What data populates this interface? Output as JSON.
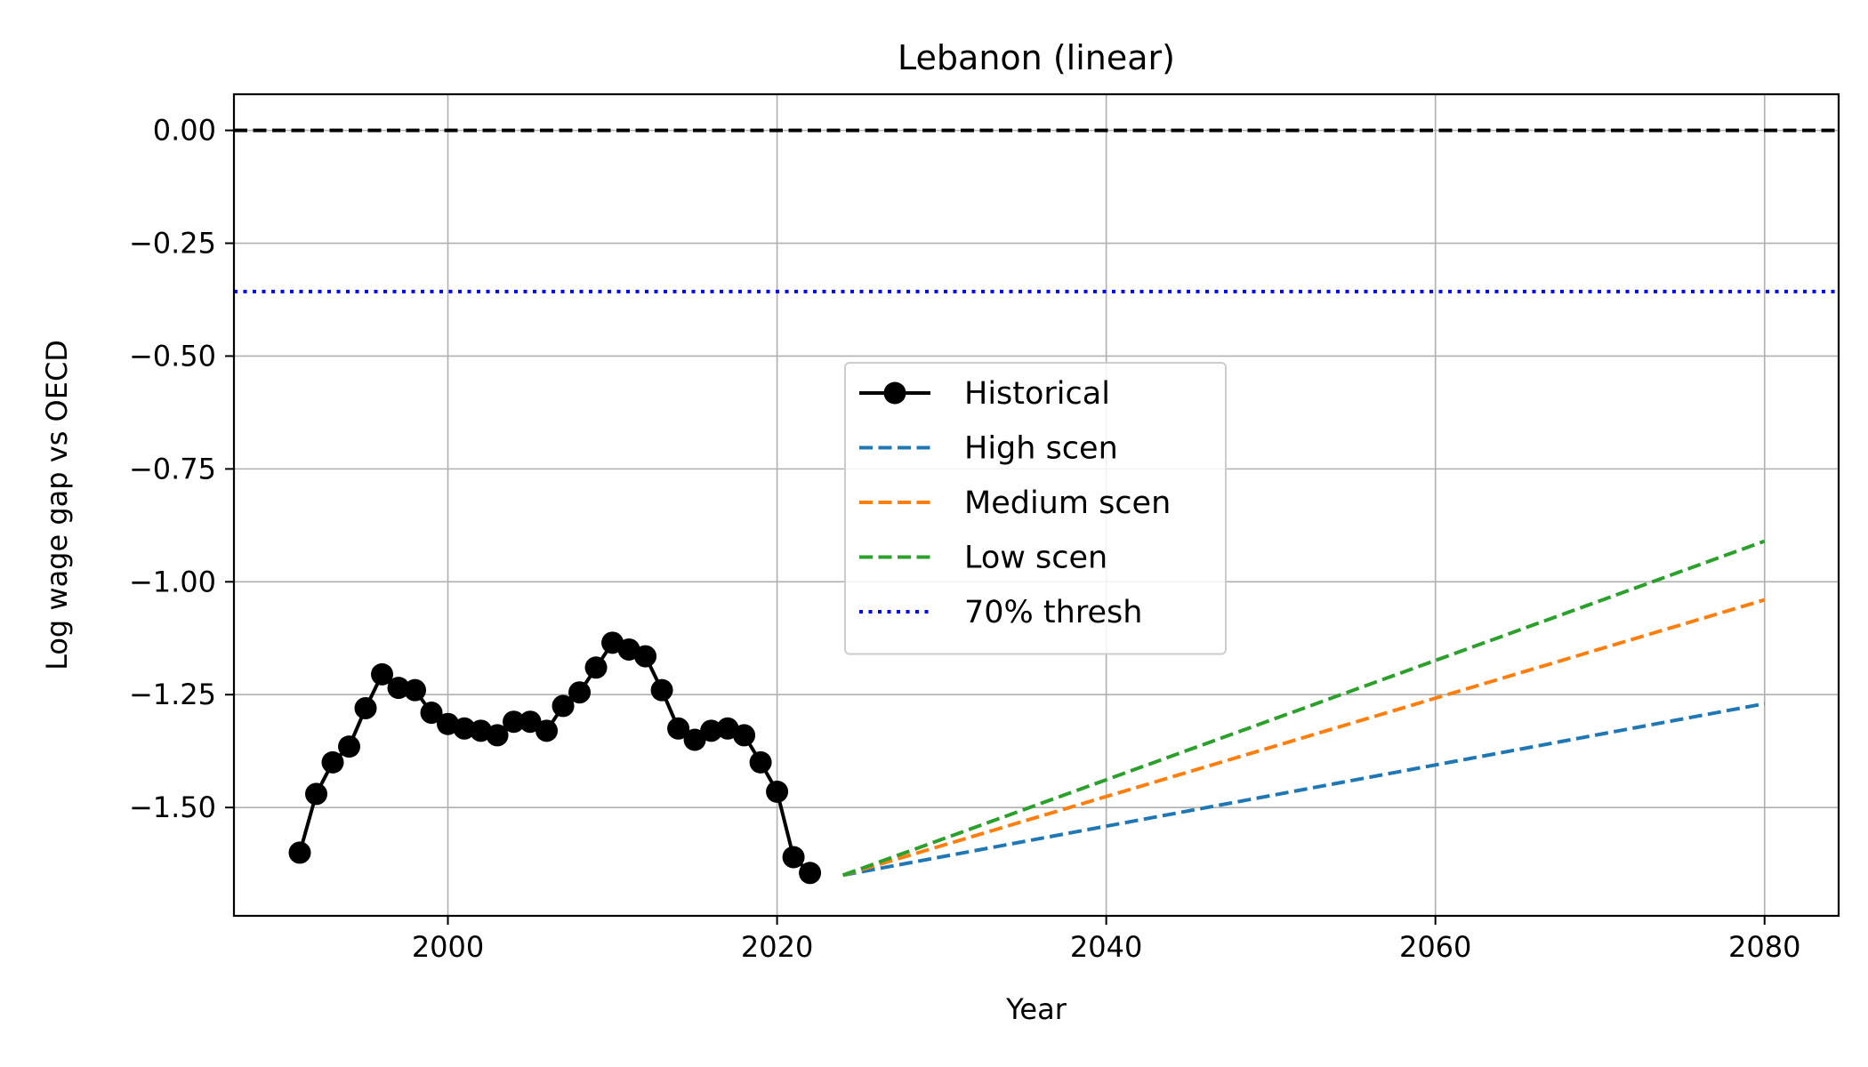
{
  "chart_data": {
    "type": "line",
    "title": "Lebanon (linear)",
    "xlabel": "Year",
    "ylabel": "Log wage gap vs OECD",
    "xlim": [
      1987,
      2084.5
    ],
    "ylim": [
      -1.74,
      0.08
    ],
    "xticks": [
      2000,
      2020,
      2040,
      2060,
      2080
    ],
    "yticks": [
      0.0,
      -0.25,
      -0.5,
      -0.75,
      -1.0,
      -1.25,
      -1.5
    ],
    "ytick_labels": [
      "0.00",
      "−0.25",
      "−0.50",
      "−0.75",
      "−1.00",
      "−1.25",
      "−1.50"
    ],
    "grid": true,
    "legend_position": "center",
    "series": [
      {
        "name": "Historical",
        "color": "#000000",
        "style": "solid-markers",
        "x": [
          1991,
          1992,
          1993,
          1994,
          1995,
          1996,
          1997,
          1998,
          1999,
          2000,
          2001,
          2002,
          2003,
          2004,
          2005,
          2006,
          2007,
          2008,
          2009,
          2010,
          2011,
          2012,
          2013,
          2014,
          2015,
          2016,
          2017,
          2018,
          2019,
          2020,
          2021,
          2022
        ],
        "y": [
          -1.6,
          -1.47,
          -1.4,
          -1.365,
          -1.28,
          -1.205,
          -1.235,
          -1.24,
          -1.29,
          -1.315,
          -1.325,
          -1.33,
          -1.34,
          -1.31,
          -1.31,
          -1.33,
          -1.275,
          -1.245,
          -1.19,
          -1.135,
          -1.15,
          -1.165,
          -1.24,
          -1.325,
          -1.35,
          -1.33,
          -1.325,
          -1.34,
          -1.4,
          -1.465,
          -1.61,
          -1.645
        ]
      },
      {
        "name": "High scen",
        "color": "#1f77b4",
        "style": "dashed",
        "x": [
          2024,
          2080
        ],
        "y": [
          -1.65,
          -1.27
        ]
      },
      {
        "name": "Medium scen",
        "color": "#ff7f0e",
        "style": "dashed",
        "x": [
          2024,
          2080
        ],
        "y": [
          -1.65,
          -1.04
        ]
      },
      {
        "name": "Low scen",
        "color": "#2ca02c",
        "style": "dashed",
        "x": [
          2024,
          2080
        ],
        "y": [
          -1.65,
          -0.91
        ]
      }
    ],
    "reference_lines": [
      {
        "name": "",
        "y": 0.0,
        "color": "#000000",
        "style": "dashed"
      },
      {
        "name": "70% thresh",
        "y": -0.357,
        "color": "#0000ff",
        "style": "dotted"
      }
    ]
  }
}
